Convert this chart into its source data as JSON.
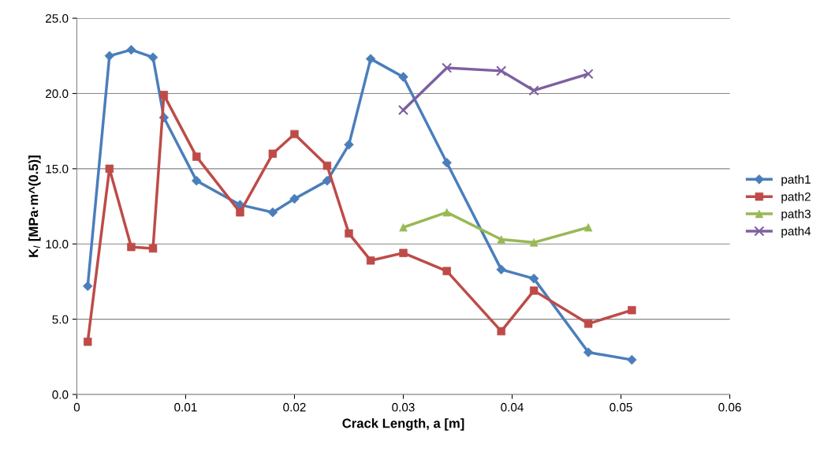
{
  "chart_data": {
    "type": "line",
    "xlabel": "Crack Length, a [m]",
    "ylabel": "K$_{I}$ [MPa·m^(0.5)]",
    "xlim": [
      0,
      0.06
    ],
    "xticks": [
      0,
      0.01,
      0.02,
      0.03,
      0.04,
      0.05,
      0.06
    ],
    "ylim": [
      0,
      25
    ],
    "yticks": [
      {
        "value": 0,
        "label": "0.0"
      },
      {
        "value": 5,
        "label": "5.0"
      },
      {
        "value": 10,
        "label": "10.0"
      },
      {
        "value": 15,
        "label": "15.0"
      },
      {
        "value": 20,
        "label": "20.0"
      },
      {
        "value": 25,
        "label": "25.0"
      }
    ],
    "grid": "y",
    "legend": "right",
    "line_style": "solid",
    "series": [
      {
        "name": "path1",
        "color": "#4a7ebb",
        "marker": "diamond",
        "x": [
          0.001,
          0.003,
          0.005,
          0.007,
          0.008,
          0.011,
          0.015,
          0.018,
          0.02,
          0.023,
          0.025,
          0.027,
          0.03,
          0.034,
          0.039,
          0.042,
          0.047,
          0.051
        ],
        "values": [
          7.2,
          22.5,
          22.9,
          22.4,
          18.4,
          14.2,
          12.6,
          12.1,
          13.0,
          14.2,
          16.6,
          22.3,
          21.1,
          15.4,
          8.3,
          7.7,
          2.8,
          2.3
        ]
      },
      {
        "name": "path2",
        "color": "#be4b48",
        "marker": "square",
        "x": [
          0.001,
          0.003,
          0.005,
          0.007,
          0.008,
          0.011,
          0.015,
          0.018,
          0.02,
          0.023,
          0.025,
          0.027,
          0.03,
          0.034,
          0.039,
          0.042,
          0.047,
          0.051
        ],
        "values": [
          3.5,
          15.0,
          9.8,
          9.7,
          19.9,
          15.8,
          12.1,
          16.0,
          17.3,
          15.2,
          10.7,
          8.9,
          9.4,
          8.2,
          4.2,
          6.9,
          4.7,
          5.6
        ]
      },
      {
        "name": "path3",
        "color": "#98b954",
        "marker": "triangle",
        "x": [
          0.03,
          0.034,
          0.039,
          0.042,
          0.047
        ],
        "values": [
          11.1,
          12.1,
          10.3,
          10.1,
          11.1
        ]
      },
      {
        "name": "path4",
        "color": "#7d60a0",
        "marker": "cross",
        "x": [
          0.03,
          0.034,
          0.039,
          0.042,
          0.047
        ],
        "values": [
          18.9,
          21.7,
          21.5,
          20.2,
          21.3
        ]
      }
    ]
  }
}
